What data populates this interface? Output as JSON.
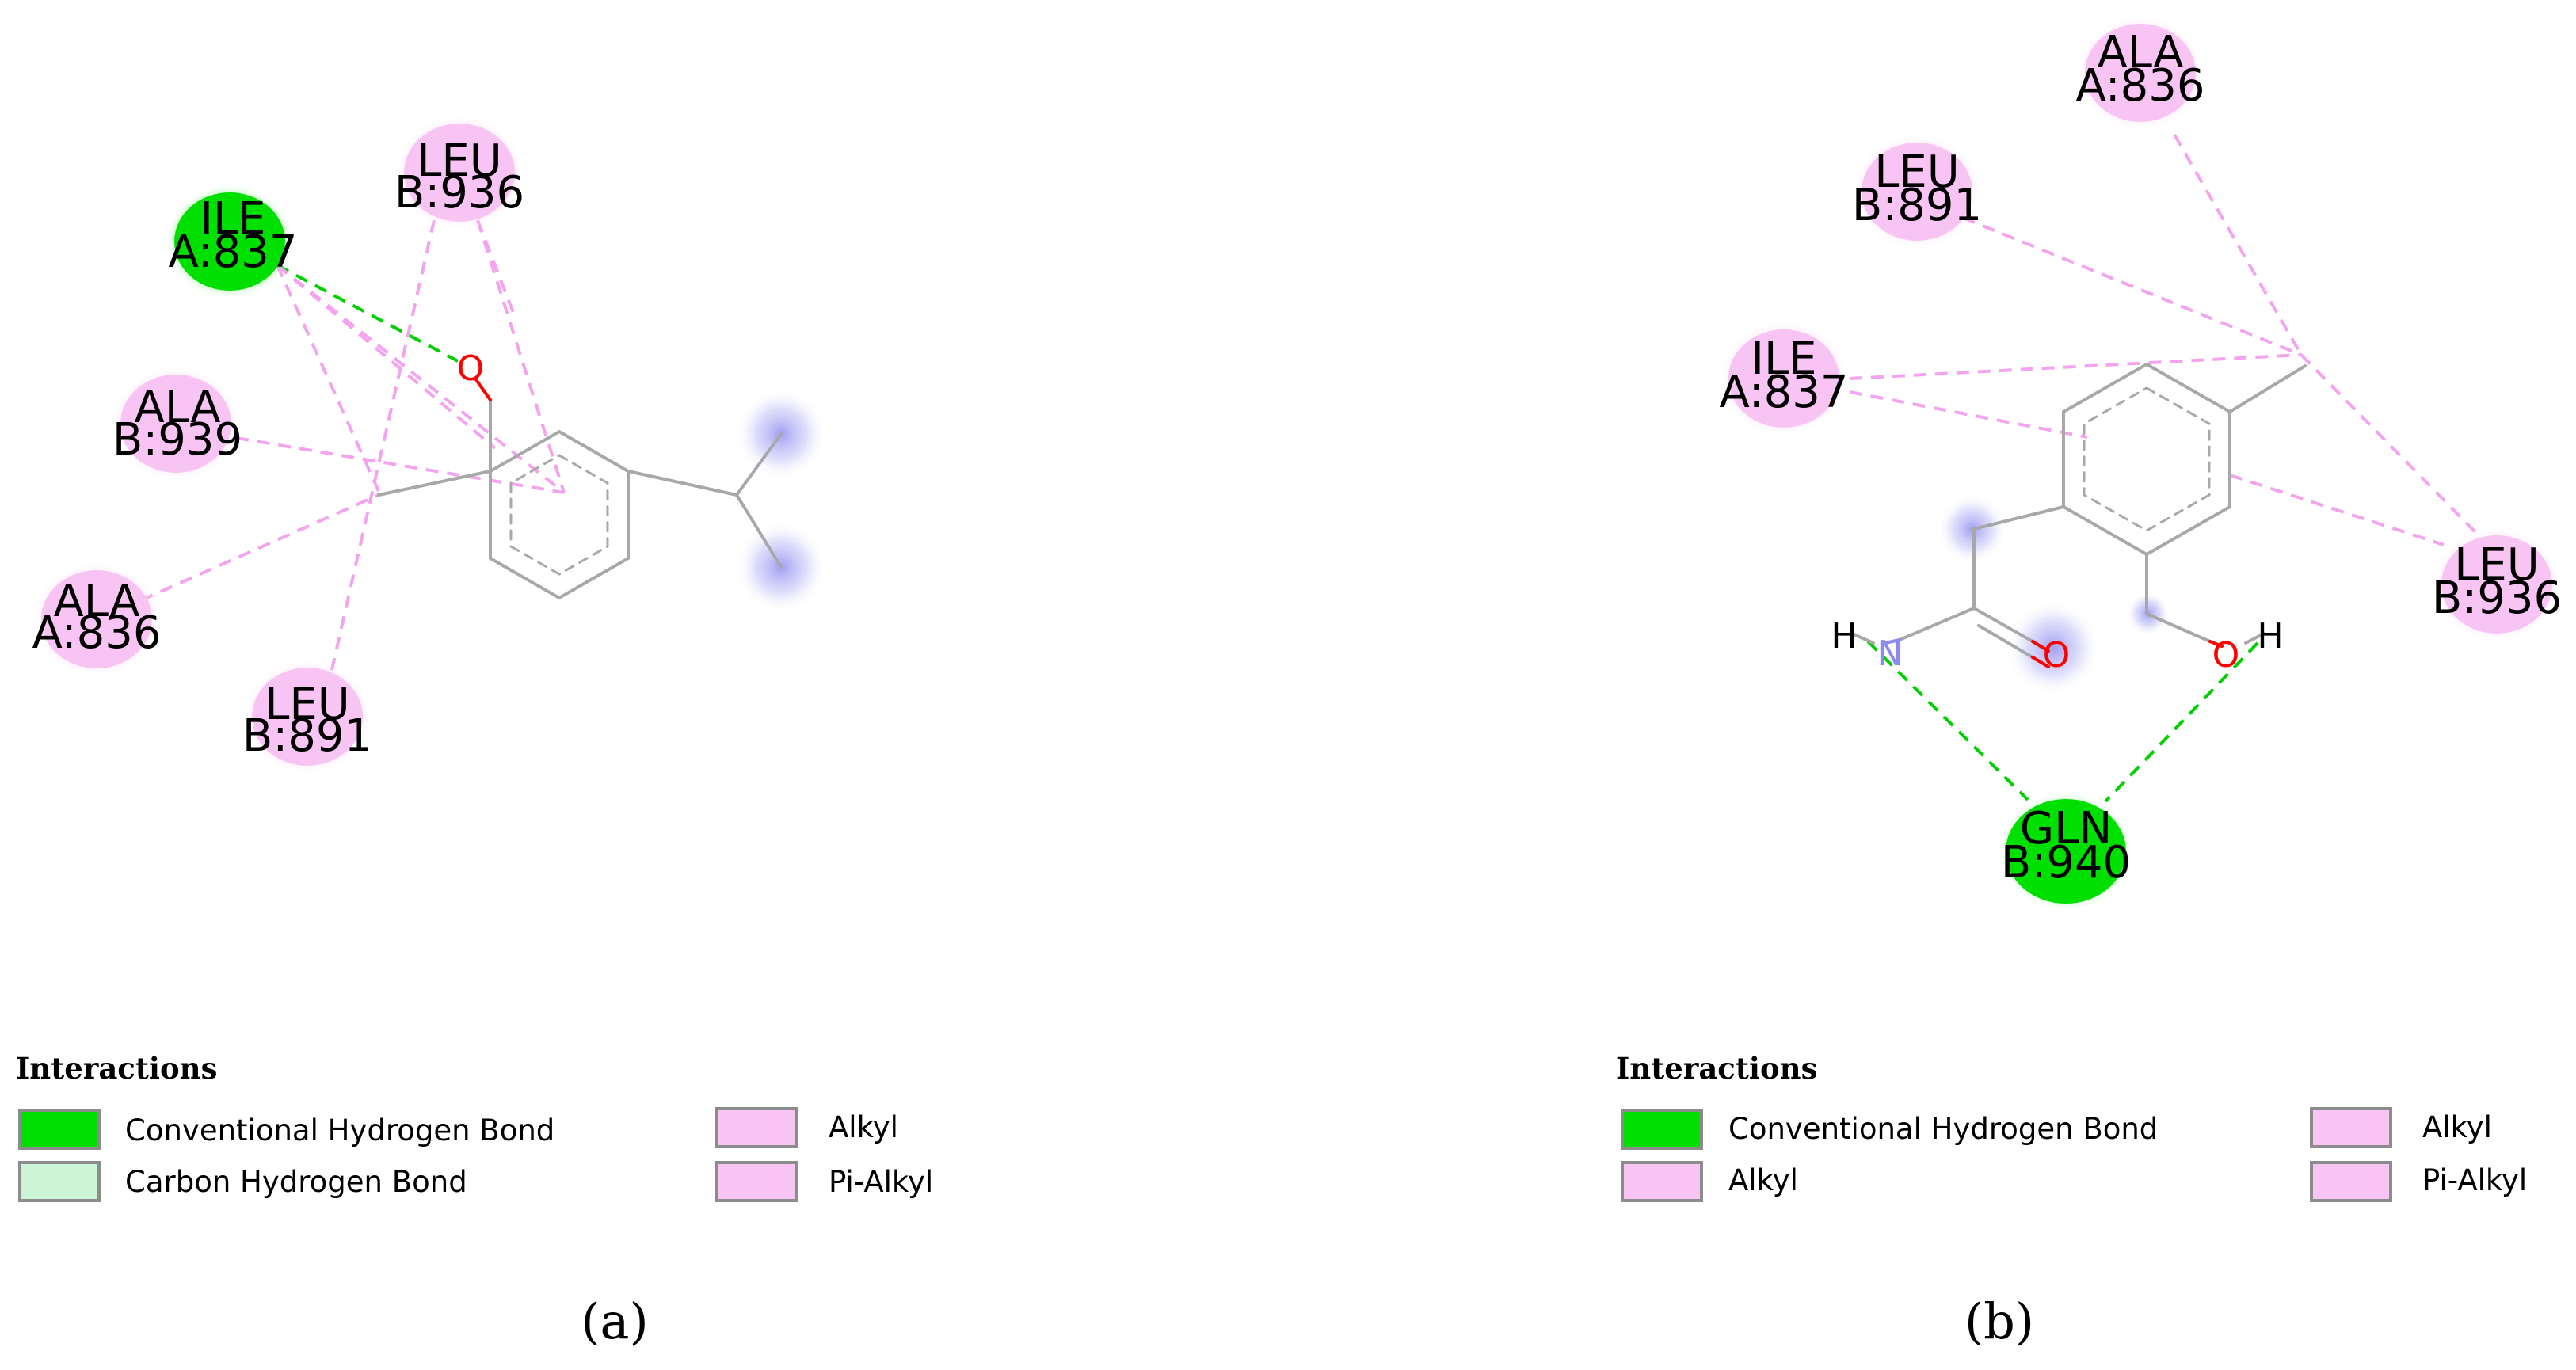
{
  "colors": {
    "conventional_hydrogen_bond": "#00e000",
    "carbon_hydrogen_bond": "#ccf5d8",
    "alkyl": "#f8c4f4",
    "pi_alkyl": "#f8c4f4",
    "oxygen": "#ff0000",
    "nitrogen": "#8a8af0",
    "bond": "#a8a8a8"
  },
  "panels": [
    {
      "caption": "(a)",
      "residues": [
        {
          "name": "ILE",
          "chain_id": "A:837",
          "type": "conventional_hydrogen_bond"
        },
        {
          "name": "LEU",
          "chain_id": "B:936",
          "type": "alkyl"
        },
        {
          "name": "ALA",
          "chain_id": "B:939",
          "type": "alkyl"
        },
        {
          "name": "ALA",
          "chain_id": "A:836",
          "type": "alkyl"
        },
        {
          "name": "LEU",
          "chain_id": "B:891",
          "type": "alkyl"
        }
      ],
      "atoms": [
        {
          "symbol": "O",
          "element": "oxygen"
        }
      ],
      "legend": {
        "title": "Interactions",
        "items": [
          {
            "label": "Conventional Hydrogen Bond",
            "type": "conventional_hydrogen_bond"
          },
          {
            "label": "Carbon Hydrogen Bond",
            "type": "carbon_hydrogen_bond"
          },
          {
            "label": "Alkyl",
            "type": "alkyl"
          },
          {
            "label": "Pi-Alkyl",
            "type": "pi_alkyl"
          }
        ]
      }
    },
    {
      "caption": "(b)",
      "residues": [
        {
          "name": "ALA",
          "chain_id": "A:836",
          "type": "alkyl"
        },
        {
          "name": "LEU",
          "chain_id": "B:891",
          "type": "alkyl"
        },
        {
          "name": "ILE",
          "chain_id": "A:837",
          "type": "alkyl"
        },
        {
          "name": "LEU",
          "chain_id": "B:936",
          "type": "alkyl"
        },
        {
          "name": "GLN",
          "chain_id": "B:940",
          "type": "conventional_hydrogen_bond"
        }
      ],
      "atoms": [
        {
          "symbol": "H",
          "element": "hydrogen"
        },
        {
          "symbol": "N",
          "element": "nitrogen"
        },
        {
          "symbol": "O",
          "element": "oxygen"
        },
        {
          "symbol": "O",
          "element": "oxygen"
        },
        {
          "symbol": "H",
          "element": "hydrogen"
        }
      ],
      "legend": {
        "title": "Interactions",
        "items": [
          {
            "label": "Conventional Hydrogen Bond",
            "type": "conventional_hydrogen_bond"
          },
          {
            "label": "Alkyl",
            "type": "alkyl"
          },
          {
            "label": "Alkyl",
            "type": "alkyl"
          },
          {
            "label": "Pi-Alkyl",
            "type": "pi_alkyl"
          }
        ]
      }
    }
  ]
}
